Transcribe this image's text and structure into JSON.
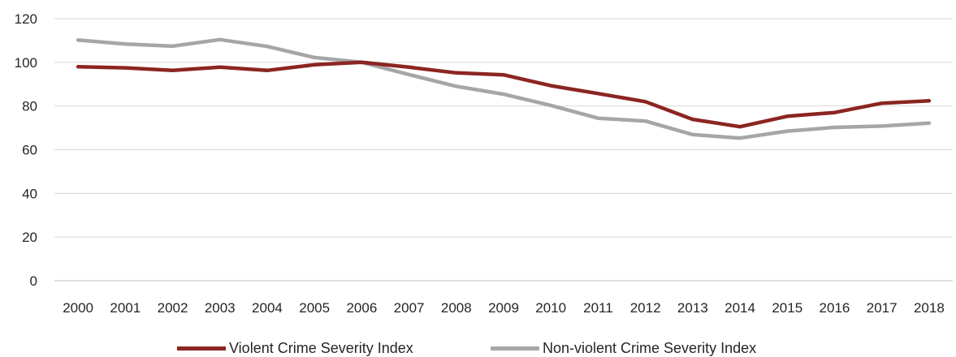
{
  "chart_data": {
    "type": "line",
    "title": "",
    "xlabel": "",
    "ylabel": "",
    "x": [
      "2000",
      "2001",
      "2002",
      "2003",
      "2004",
      "2005",
      "2006",
      "2007",
      "2008",
      "2009",
      "2010",
      "2011",
      "2012",
      "2013",
      "2014",
      "2015",
      "2016",
      "2017",
      "2018"
    ],
    "ylim": [
      0,
      120
    ],
    "yticks": [
      "0",
      "20",
      "40",
      "60",
      "80",
      "100",
      "120"
    ],
    "grid": true,
    "legend_position": "bottom",
    "series": [
      {
        "name": "Violent Crime Severity Index",
        "color": "#8B2521",
        "values": [
          98,
          97.5,
          96.3,
          97.8,
          96.3,
          98.9,
          100,
          97.8,
          95.2,
          94.3,
          89.3,
          85.7,
          82,
          73.9,
          70.5,
          75.3,
          77,
          81.3,
          82.4
        ]
      },
      {
        "name": "Non-violent Crime Severity Index",
        "color": "#A6A6A6",
        "values": [
          110.2,
          108.4,
          107.4,
          110.4,
          107.3,
          102.2,
          100,
          94.4,
          89,
          85.4,
          80.3,
          74.4,
          73.1,
          66.9,
          65.3,
          68.5,
          70.2,
          70.8,
          72.2
        ]
      }
    ]
  }
}
